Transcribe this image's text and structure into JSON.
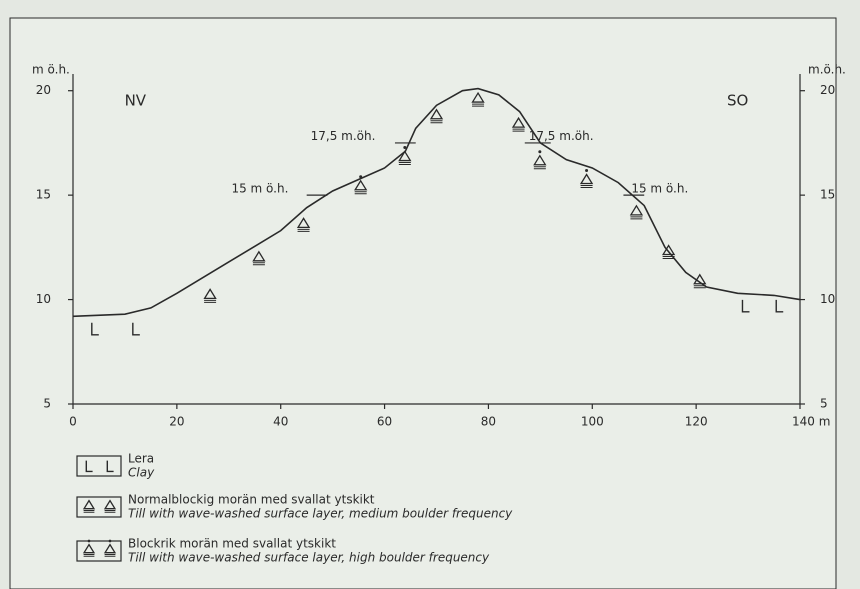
{
  "chart_data": {
    "type": "line",
    "y_label": "m ö.h.",
    "y2_label": "m.ö.h.",
    "xlim": [
      0,
      140
    ],
    "xticks": [
      0,
      20,
      40,
      60,
      80,
      100,
      120,
      {
        "value": 140,
        "label": "140 m"
      }
    ],
    "ylim": [
      5,
      20.8
    ],
    "yticks": [
      5,
      10,
      15,
      20
    ],
    "y2lim": [
      5,
      20.8
    ],
    "y2ticks": [
      5,
      10,
      15,
      20
    ],
    "color": "#2a2a2a",
    "profile": {
      "x": [
        0,
        10,
        15,
        20,
        30,
        40,
        45,
        50,
        60,
        64,
        66,
        70,
        75,
        78,
        82,
        86,
        90,
        95,
        100,
        105,
        110,
        114,
        118,
        122,
        128,
        135,
        140
      ],
      "values": [
        9.2,
        9.3,
        9.6,
        10.3,
        11.8,
        13.3,
        14.4,
        15.2,
        16.3,
        17.1,
        18.2,
        19.3,
        20.0,
        20.1,
        19.8,
        19.0,
        17.5,
        16.7,
        16.3,
        15.6,
        14.5,
        12.5,
        11.3,
        10.6,
        10.3,
        10.2,
        10.0
      ]
    },
    "series": [
      {
        "name": "Lera",
        "name_en": "Clay",
        "marker": "clay",
        "x": [
          4.2,
          12.1,
          129.5,
          136
        ],
        "values": [
          8.6,
          8.6,
          9.7,
          9.7
        ]
      },
      {
        "name": "Normalblockig morän med svallat ytskikt",
        "name_en": "Till with wave-washed surface layer, medium boulder frequency",
        "marker": "till",
        "x": [
          26.4,
          35.8,
          44.4,
          70,
          78,
          85.8,
          108.5,
          114.7,
          120.7
        ],
        "values": [
          10.2,
          12.0,
          13.6,
          18.8,
          19.6,
          18.4,
          14.2,
          12.3,
          10.9
        ]
      },
      {
        "name": "Blockrik morän med svallat ytskikt",
        "name_en": "Till with wave-washed surface layer, high boulder frequency",
        "marker": "till-dot",
        "x": [
          55.4,
          63.9,
          89.9,
          98.9
        ],
        "values": [
          15.4,
          16.8,
          16.6,
          15.7
        ]
      }
    ],
    "annotations": [
      {
        "text": "NV",
        "x": 12,
        "y": 19.5
      },
      {
        "text": "SO",
        "x": 128,
        "y": 19.5
      },
      {
        "text": "17,5 m.öh.",
        "x": 52,
        "y": 17.8,
        "level": 17.5,
        "span": [
          62,
          66
        ]
      },
      {
        "text": "17,5 m.öh.",
        "x": 94,
        "y": 17.8,
        "level": 17.5,
        "span": [
          87,
          92
        ]
      },
      {
        "text": "15 m ö.h.",
        "x": 36,
        "y": 15.3,
        "level": 15,
        "span": [
          45,
          49
        ]
      },
      {
        "text": "15 m ö.h.",
        "x": 113,
        "y": 15.3,
        "level": 15,
        "span": [
          106,
          110
        ]
      }
    ]
  }
}
